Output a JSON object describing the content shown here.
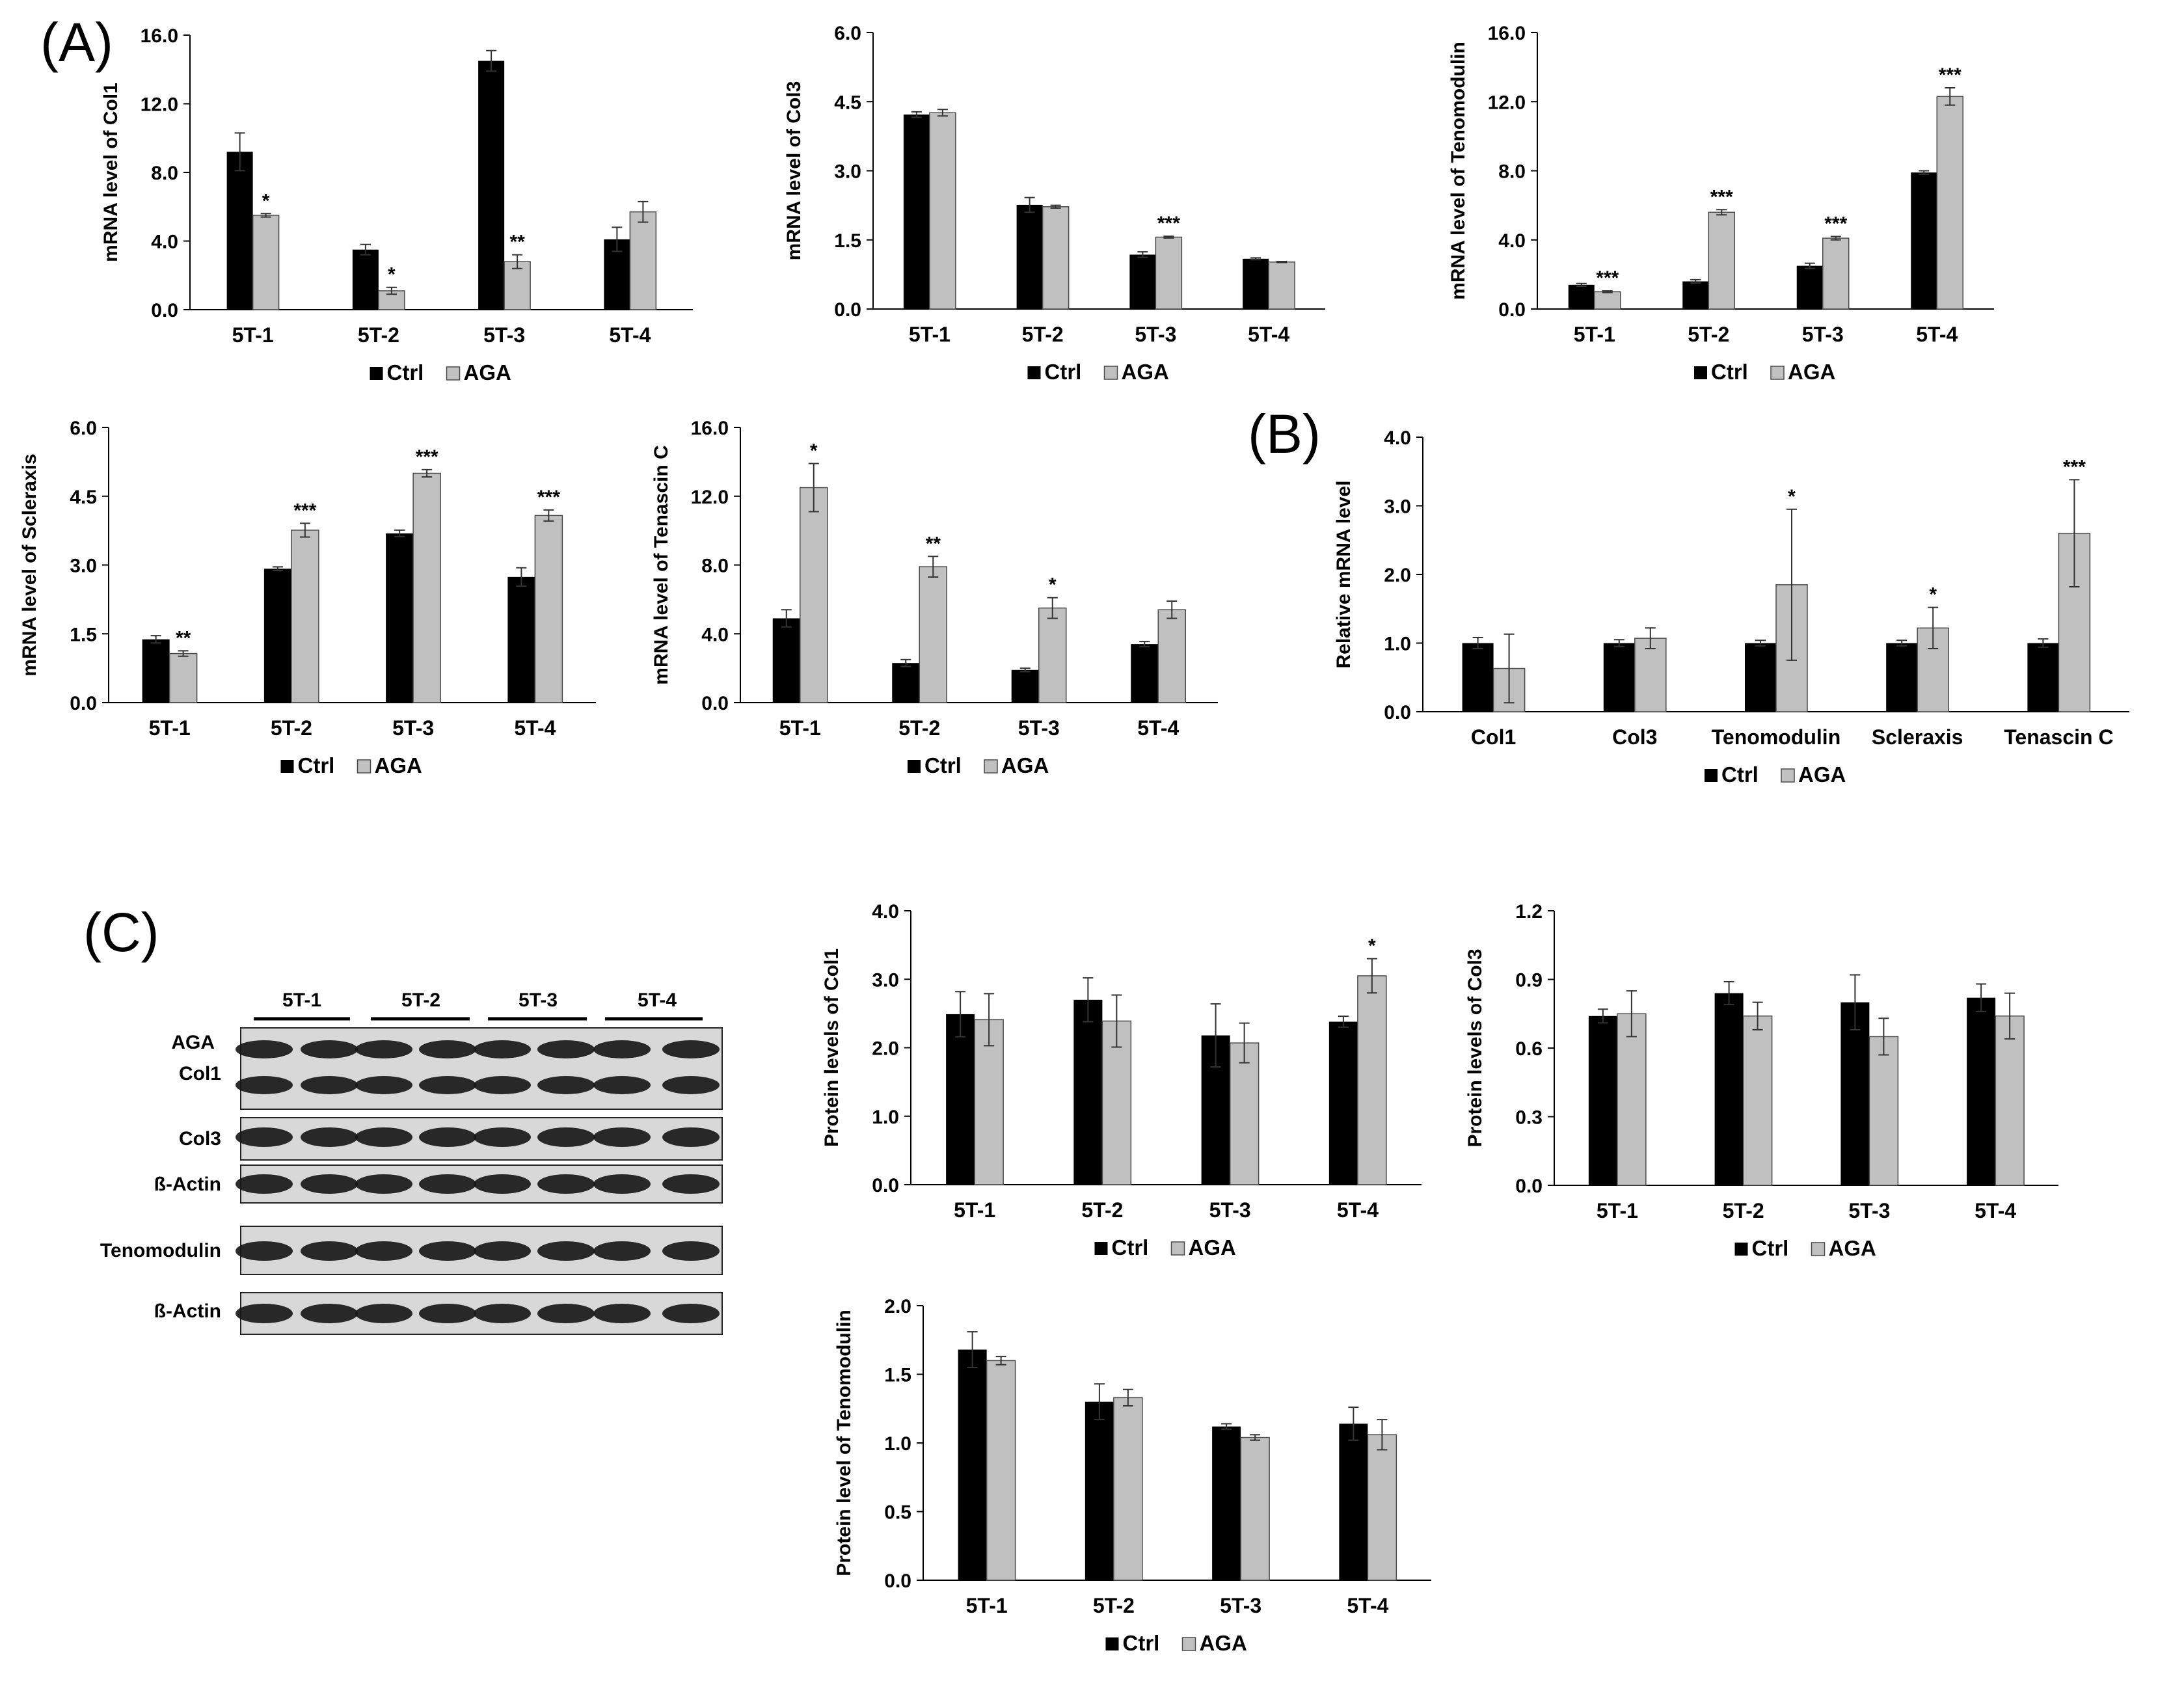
{
  "panel_labels": {
    "a": "(A)",
    "b": "(B)",
    "c": "(C)"
  },
  "legend": {
    "ctrl": "Ctrl",
    "aga": "AGA"
  },
  "colors": {
    "ctrl": "#000000",
    "aga": "#c0c0c0",
    "axis": "#000000",
    "bar_edge": "#4a4a4a"
  },
  "chart_data": [
    {
      "id": "a-col1",
      "type": "bar",
      "title": "",
      "xlabel": "",
      "ylabel": "mRNA level of Col1",
      "categories": [
        "5T-1",
        "5T-2",
        "5T-3",
        "5T-4"
      ],
      "ylim": [
        0,
        16
      ],
      "yticks": [
        "0.0",
        "4.0",
        "8.0",
        "12.0",
        "16.0"
      ],
      "series": [
        {
          "name": "Ctrl",
          "values": [
            9.2,
            3.5,
            14.5,
            4.1
          ],
          "errors": [
            1.1,
            0.3,
            0.6,
            0.7
          ]
        },
        {
          "name": "AGA",
          "values": [
            5.5,
            1.1,
            2.8,
            5.7
          ],
          "errors": [
            0.1,
            0.2,
            0.4,
            0.6
          ]
        }
      ],
      "annotations": [
        "",
        "*",
        "",
        "*",
        "",
        "**",
        "",
        ""
      ]
    },
    {
      "id": "a-col3",
      "type": "bar",
      "title": "",
      "xlabel": "",
      "ylabel": "mRNA level of Col3",
      "categories": [
        "5T-1",
        "5T-2",
        "5T-3",
        "5T-4"
      ],
      "ylim": [
        0,
        6
      ],
      "yticks": [
        "0.0",
        "1.5",
        "3.0",
        "4.5",
        "6.0"
      ],
      "series": [
        {
          "name": "Ctrl",
          "values": [
            4.22,
            2.26,
            1.18,
            1.09
          ],
          "errors": [
            0.06,
            0.16,
            0.06,
            0.02
          ]
        },
        {
          "name": "AGA",
          "values": [
            4.26,
            2.22,
            1.56,
            1.02
          ],
          "errors": [
            0.07,
            0.03,
            0.02,
            0.01
          ]
        }
      ],
      "annotations": [
        "",
        "",
        "",
        "",
        "",
        "***",
        "",
        ""
      ]
    },
    {
      "id": "a-tnmd",
      "type": "bar",
      "title": "",
      "xlabel": "",
      "ylabel": "mRNA level of Tenomodulin",
      "categories": [
        "5T-1",
        "5T-2",
        "5T-3",
        "5T-4"
      ],
      "ylim": [
        0,
        16
      ],
      "yticks": [
        "0.0",
        "4.0",
        "8.0",
        "12.0",
        "16.0"
      ],
      "series": [
        {
          "name": "Ctrl",
          "values": [
            1.4,
            1.6,
            2.5,
            7.9
          ],
          "errors": [
            0.08,
            0.1,
            0.15,
            0.1
          ]
        },
        {
          "name": "AGA",
          "values": [
            1.0,
            5.6,
            4.1,
            12.3
          ],
          "errors": [
            0.05,
            0.15,
            0.1,
            0.5
          ]
        }
      ],
      "annotations": [
        "",
        "***",
        "",
        "***",
        "",
        "***",
        "",
        "***"
      ]
    },
    {
      "id": "a-scx",
      "type": "bar",
      "title": "",
      "xlabel": "",
      "ylabel": "mRNA level of Scleraxis",
      "categories": [
        "5T-1",
        "5T-2",
        "5T-3",
        "5T-4"
      ],
      "ylim": [
        0,
        6
      ],
      "yticks": [
        "0.0",
        "1.5",
        "3.0",
        "4.5",
        "6.0"
      ],
      "series": [
        {
          "name": "Ctrl",
          "values": [
            1.38,
            2.92,
            3.69,
            2.74
          ],
          "errors": [
            0.08,
            0.04,
            0.07,
            0.2
          ]
        },
        {
          "name": "AGA",
          "values": [
            1.07,
            3.76,
            5.0,
            4.08
          ],
          "errors": [
            0.06,
            0.15,
            0.08,
            0.12
          ]
        }
      ],
      "annotations": [
        "",
        "**",
        "",
        "***",
        "",
        "***",
        "",
        "***"
      ]
    },
    {
      "id": "a-tnc",
      "type": "bar",
      "title": "",
      "xlabel": "",
      "ylabel": "mRNA level of Tenascin C",
      "categories": [
        "5T-1",
        "5T-2",
        "5T-3",
        "5T-4"
      ],
      "ylim": [
        0,
        16
      ],
      "yticks": [
        "0.0",
        "4.0",
        "8.0",
        "12.0",
        "16.0"
      ],
      "series": [
        {
          "name": "Ctrl",
          "values": [
            4.9,
            2.3,
            1.9,
            3.4
          ],
          "errors": [
            0.5,
            0.2,
            0.1,
            0.15
          ]
        },
        {
          "name": "AGA",
          "values": [
            12.5,
            7.9,
            5.5,
            5.4
          ],
          "errors": [
            1.4,
            0.6,
            0.6,
            0.5
          ]
        }
      ],
      "annotations": [
        "",
        "*",
        "",
        "**",
        "",
        "*",
        "",
        ""
      ]
    },
    {
      "id": "b-rel",
      "type": "bar",
      "title": "",
      "xlabel": "",
      "ylabel": "Relative mRNA level",
      "categories": [
        "Col1",
        "Col3",
        "Tenomodulin",
        "Scleraxis",
        "Tenascin C"
      ],
      "ylim": [
        0,
        4
      ],
      "yticks": [
        "0.0",
        "1.0",
        "2.0",
        "3.0",
        "4.0"
      ],
      "series": [
        {
          "name": "Ctrl",
          "values": [
            1.0,
            1.0,
            1.0,
            1.0,
            1.0
          ],
          "errors": [
            0.08,
            0.05,
            0.04,
            0.04,
            0.06
          ]
        },
        {
          "name": "AGA",
          "values": [
            0.63,
            1.07,
            1.85,
            1.22,
            2.6
          ],
          "errors": [
            0.5,
            0.15,
            1.1,
            0.3,
            0.78
          ]
        }
      ],
      "annotations": [
        "",
        "",
        "",
        "",
        "",
        "*",
        "",
        "*",
        "",
        "***"
      ]
    },
    {
      "id": "c-col1",
      "type": "bar",
      "title": "",
      "xlabel": "",
      "ylabel": "Protein levels of Col1",
      "categories": [
        "5T-1",
        "5T-2",
        "5T-3",
        "5T-4"
      ],
      "ylim": [
        0,
        4
      ],
      "yticks": [
        "0.0",
        "1.0",
        "2.0",
        "3.0",
        "4.0"
      ],
      "series": [
        {
          "name": "Ctrl",
          "values": [
            2.49,
            2.7,
            2.18,
            2.38
          ],
          "errors": [
            0.33,
            0.32,
            0.46,
            0.08
          ]
        },
        {
          "name": "AGA",
          "values": [
            2.41,
            2.39,
            2.07,
            3.05
          ],
          "errors": [
            0.38,
            0.38,
            0.29,
            0.25
          ]
        }
      ],
      "annotations": [
        "",
        "",
        "",
        "",
        "",
        "",
        "",
        "*"
      ]
    },
    {
      "id": "c-col3",
      "type": "bar",
      "title": "",
      "xlabel": "",
      "ylabel": "Protein levels of Col3",
      "categories": [
        "5T-1",
        "5T-2",
        "5T-3",
        "5T-4"
      ],
      "ylim": [
        0,
        1.2
      ],
      "yticks": [
        "0.0",
        "0.3",
        "0.6",
        "0.9",
        "1.2"
      ],
      "series": [
        {
          "name": "Ctrl",
          "values": [
            0.74,
            0.84,
            0.8,
            0.82
          ],
          "errors": [
            0.03,
            0.05,
            0.12,
            0.06
          ]
        },
        {
          "name": "AGA",
          "values": [
            0.75,
            0.74,
            0.65,
            0.74
          ],
          "errors": [
            0.1,
            0.06,
            0.08,
            0.1
          ]
        }
      ],
      "annotations": [
        "",
        "",
        "",
        "",
        "",
        "",
        "",
        ""
      ]
    },
    {
      "id": "c-tnmd",
      "type": "bar",
      "title": "",
      "xlabel": "",
      "ylabel": "Protein level of Tenomodulin",
      "categories": [
        "5T-1",
        "5T-2",
        "5T-3",
        "5T-4"
      ],
      "ylim": [
        0,
        2
      ],
      "yticks": [
        "0.0",
        "0.5",
        "1.0",
        "1.5",
        "2.0"
      ],
      "series": [
        {
          "name": "Ctrl",
          "values": [
            1.68,
            1.3,
            1.12,
            1.14
          ],
          "errors": [
            0.13,
            0.13,
            0.02,
            0.12
          ]
        },
        {
          "name": "AGA",
          "values": [
            1.6,
            1.33,
            1.04,
            1.06
          ],
          "errors": [
            0.03,
            0.06,
            0.02,
            0.11
          ]
        }
      ],
      "annotations": [
        "",
        "",
        "",
        "",
        "",
        "",
        "",
        ""
      ]
    }
  ],
  "blot": {
    "groups": [
      "5T-1",
      "5T-2",
      "5T-3",
      "5T-4"
    ],
    "treatment_label": "AGA",
    "treatment_signs": [
      "-",
      "+",
      "-",
      "+",
      "-",
      "+",
      "-",
      "+"
    ],
    "rows": [
      "Col1",
      "Col3",
      "ß-Actin",
      "Tenomodulin",
      "ß-Actin"
    ]
  }
}
